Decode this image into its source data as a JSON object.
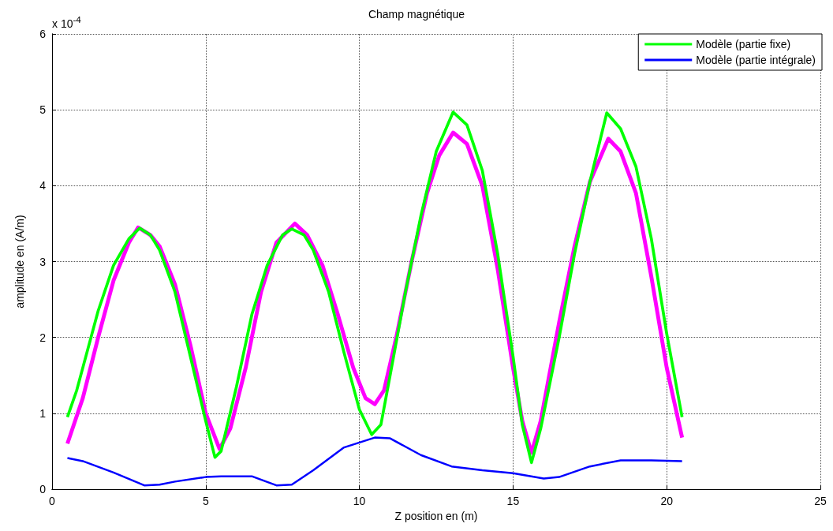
{
  "chart_data": {
    "type": "line",
    "title": "Champ magnétique",
    "xlabel": "Z position en (m)",
    "ylabel": "amplitude en (A/m)",
    "annotations": [
      "x 10$^{-4}$"
    ],
    "xlim": [
      0,
      25
    ],
    "xticks": [
      0,
      5,
      10,
      15,
      20,
      25
    ],
    "ylim": [
      0,
      6
    ],
    "yticks": [
      0,
      1,
      2,
      3,
      4,
      5,
      6
    ],
    "grid": true,
    "legend": "top right",
    "line_style": "solid",
    "marker": "none",
    "series": [
      {
        "color": "#ff00ff",
        "x": [
          0.5,
          1,
          1.5,
          2,
          2.5,
          2.8,
          3.2,
          3.5,
          4,
          4.5,
          5,
          5.45,
          5.8,
          6.3,
          6.8,
          7.3,
          7.9,
          8.3,
          8.8,
          9.3,
          9.8,
          10.2,
          10.5,
          10.8,
          11.2,
          11.7,
          12.2,
          12.6,
          13.05,
          13.5,
          14,
          14.5,
          15,
          15.3,
          15.6,
          15.9,
          16.5,
          17,
          17.5,
          18.1,
          18.5,
          19,
          19.5,
          20,
          20.5
        ],
        "values": [
          0.6,
          1.2,
          2.0,
          2.75,
          3.25,
          3.45,
          3.35,
          3.2,
          2.7,
          1.9,
          1.0,
          0.53,
          0.8,
          1.6,
          2.6,
          3.25,
          3.5,
          3.35,
          2.95,
          2.3,
          1.6,
          1.2,
          1.12,
          1.3,
          2.0,
          3.0,
          3.9,
          4.4,
          4.7,
          4.55,
          4.0,
          2.9,
          1.6,
          0.9,
          0.48,
          0.9,
          2.2,
          3.2,
          4.05,
          4.62,
          4.45,
          3.9,
          2.8,
          1.6,
          0.68
        ]
      },
      {
        "name": "Modèle (partie fixe)",
        "color": "#00ff00",
        "x": [
          0.5,
          0.8,
          1,
          1.5,
          2,
          2.5,
          2.85,
          3.2,
          3.5,
          4,
          4.5,
          5,
          5.3,
          5.5,
          6,
          6.5,
          7,
          7.5,
          7.8,
          8.2,
          8.5,
          9,
          9.5,
          10,
          10.4,
          10.7,
          11,
          11.5,
          12,
          12.5,
          13.05,
          13.5,
          14,
          14.5,
          15,
          15.3,
          15.6,
          15.9,
          16.5,
          17,
          17.5,
          18.05,
          18.5,
          19,
          19.5,
          20,
          20.5
        ],
        "values": [
          0.95,
          1.3,
          1.6,
          2.35,
          2.95,
          3.3,
          3.44,
          3.35,
          3.15,
          2.6,
          1.75,
          0.9,
          0.42,
          0.5,
          1.35,
          2.3,
          2.95,
          3.35,
          3.43,
          3.35,
          3.15,
          2.6,
          1.8,
          1.05,
          0.72,
          0.85,
          1.5,
          2.6,
          3.6,
          4.45,
          4.97,
          4.8,
          4.2,
          3.1,
          1.75,
          0.85,
          0.35,
          0.8,
          2.0,
          3.1,
          4.05,
          4.96,
          4.75,
          4.25,
          3.3,
          2.05,
          0.95
        ]
      },
      {
        "name": "Modèle (partie intégrale)",
        "color": "#0000ff",
        "x": [
          0.5,
          1,
          2,
          3,
          3.5,
          4,
          5,
          5.5,
          6.5,
          7.3,
          7.8,
          8.5,
          9.5,
          10.5,
          11,
          12,
          13,
          14,
          15,
          16,
          16.5,
          17.5,
          18.5,
          19.5,
          20.5
        ],
        "values": [
          0.41,
          0.37,
          0.22,
          0.05,
          0.06,
          0.1,
          0.16,
          0.17,
          0.17,
          0.05,
          0.06,
          0.25,
          0.55,
          0.68,
          0.67,
          0.45,
          0.3,
          0.25,
          0.21,
          0.14,
          0.16,
          0.3,
          0.38,
          0.38,
          0.37
        ]
      }
    ]
  }
}
